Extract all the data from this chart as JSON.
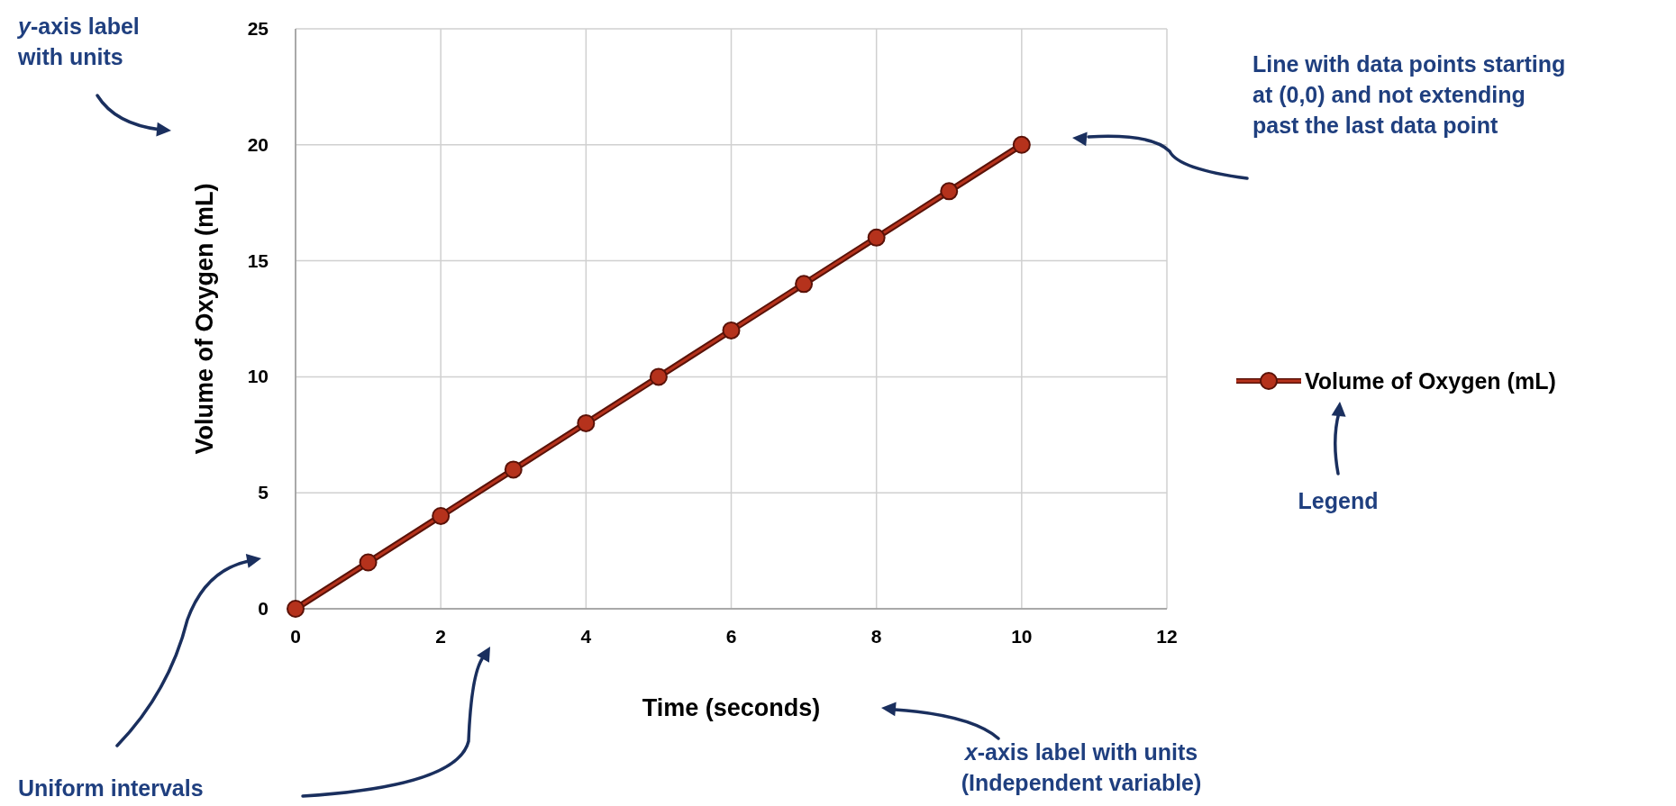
{
  "chart_data": {
    "type": "line",
    "xlabel": "Time (seconds)",
    "ylabel": "Volume of Oxygen (mL)",
    "x": [
      0,
      1,
      2,
      3,
      4,
      5,
      6,
      7,
      8,
      9,
      10
    ],
    "series": [
      {
        "name": "Volume of Oxygen (mL)",
        "color": "#b5321c",
        "values": [
          0,
          2,
          4,
          6,
          8,
          10,
          12,
          14,
          16,
          18,
          20
        ]
      }
    ],
    "xlim": [
      0,
      12
    ],
    "xticks": [
      0,
      2,
      4,
      6,
      8,
      10,
      12
    ],
    "ylim": [
      0,
      25
    ],
    "yticks": [
      0,
      5,
      10,
      15,
      20,
      25
    ],
    "grid": true,
    "legend": "right",
    "marker": "circle",
    "line_style": "solid",
    "annotations": [
      "y-axis label\nwith units",
      "Line with data points starting\nat (0,0) and not extending\npast the last data point",
      "Legend",
      "Uniform intervals",
      "x-axis label with units\n(Independent variable)"
    ]
  }
}
